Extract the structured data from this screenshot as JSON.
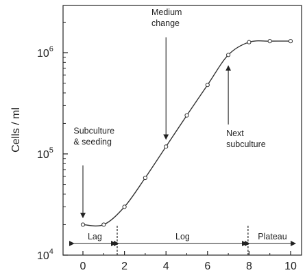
{
  "chart_data": {
    "type": "line",
    "title": "",
    "xlabel": "",
    "ylabel": "Cells / ml",
    "xlim": [
      -1,
      10.6
    ],
    "ylim": [
      10000,
      2500000
    ],
    "yscale": "log",
    "grid": false,
    "x_ticks": [
      0,
      2,
      4,
      6,
      8,
      10
    ],
    "y_ticks": [
      {
        "value": 10000,
        "base": "10",
        "exp": "4"
      },
      {
        "value": 100000,
        "base": "10",
        "exp": "5"
      },
      {
        "value": 1000000,
        "base": "10",
        "exp": "6"
      }
    ],
    "series": [
      {
        "x": [
          0,
          1,
          2,
          3,
          4,
          5,
          6,
          7,
          8,
          9,
          10
        ],
        "values": [
          20000,
          20000,
          30000,
          58000,
          118000,
          240000,
          480000,
          950000,
          1270000,
          1300000,
          1300000
        ]
      }
    ],
    "phases": [
      {
        "label": "Lag",
        "from": -0.5,
        "to": 1.65
      },
      {
        "label": "Log",
        "from": 1.65,
        "to": 7.95
      },
      {
        "label": "Plateau",
        "from": 7.95,
        "to": 10.3
      }
    ],
    "phase_dividers": [
      1.65,
      7.95
    ],
    "annotations": [
      {
        "lines": [
          "Subculture",
          "& seeding"
        ],
        "text_x": -0.45,
        "text_y": 158000,
        "arrow_x": 0,
        "arrow_from": 77000,
        "arrow_to": 23500
      },
      {
        "lines": [
          "Medium",
          "change"
        ],
        "text_x": 3.3,
        "text_y": 2350000,
        "arrow_x": 4,
        "arrow_from": 1420000,
        "arrow_to": 140000
      },
      {
        "lines": [
          "Next",
          "subculture"
        ],
        "text_x": 6.9,
        "text_y": 150000,
        "arrow_x": 7,
        "arrow_from": 195000,
        "arrow_to": 740000
      }
    ]
  }
}
